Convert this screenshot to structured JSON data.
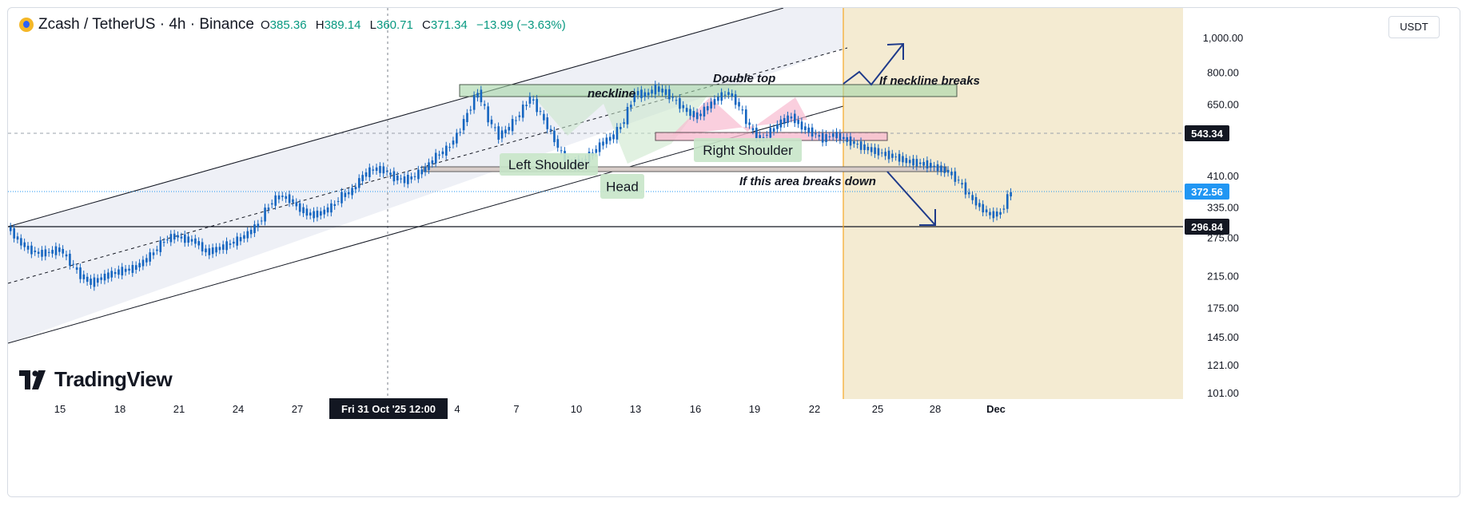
{
  "header": {
    "symbol": "Zcash / TetherUS · 4h · Binance",
    "open_label": "O",
    "open": "385.36",
    "high_label": "H",
    "high": "389.14",
    "low_label": "L",
    "low": "360.71",
    "close_label": "C",
    "close": "371.34",
    "change": "−13.99 (−3.63%)"
  },
  "currency_button": "USDT",
  "logo_text": "TradingView",
  "colors": {
    "up": "#089981",
    "candle": "#1565c0",
    "channel_fill": "#eef0f6",
    "projection_fill": "#f4ebd2",
    "projection_line": "#f5a623",
    "green_zone": "#c8e6c9",
    "pink_zone": "#f8bbd0",
    "arrow": "#1e3a8a",
    "current_price": "#2196f3",
    "level_dark": "#131722"
  },
  "chart_data": {
    "type": "candlestick",
    "symbol": "ZECUSDT",
    "interval": "4h",
    "y_scale": "log",
    "y_ticks": [
      "1,000.00",
      "800.00",
      "650.00",
      "410.00",
      "335.00",
      "275.00",
      "215.00",
      "175.00",
      "145.00",
      "121.00",
      "101.00"
    ],
    "y_tick_values": [
      1000,
      800,
      650,
      410,
      335,
      275,
      215,
      175,
      145,
      121,
      101
    ],
    "x_ticks": [
      "15",
      "18",
      "21",
      "24",
      "27",
      "Fri 31 Oct '25   12:00",
      "4",
      "7",
      "10",
      "13",
      "16",
      "19",
      "22",
      "25",
      "28",
      "Dec"
    ],
    "price_labels": [
      {
        "value": "543.34",
        "style": "dark"
      },
      {
        "value": "372.56",
        "style": "current"
      },
      {
        "value": "296.84",
        "style": "dark"
      }
    ],
    "annotations": [
      {
        "text": "neckline",
        "type": "italic"
      },
      {
        "text": "Double top",
        "type": "italic"
      },
      {
        "text": "If neckline breaks",
        "type": "italic"
      },
      {
        "text": "Left Shoulder",
        "type": "box"
      },
      {
        "text": "Head",
        "type": "box"
      },
      {
        "text": "Right Shoulder",
        "type": "box"
      },
      {
        "text": "If this area breaks down",
        "type": "italic"
      }
    ],
    "price_path": [
      [
        0,
        295
      ],
      [
        3,
        270
      ],
      [
        6,
        255
      ],
      [
        9,
        248
      ],
      [
        12,
        250
      ],
      [
        15,
        255
      ],
      [
        18,
        235
      ],
      [
        21,
        215
      ],
      [
        24,
        205
      ],
      [
        27,
        212
      ],
      [
        30,
        218
      ],
      [
        33,
        222
      ],
      [
        36,
        225
      ],
      [
        39,
        235
      ],
      [
        42,
        250
      ],
      [
        45,
        270
      ],
      [
        48,
        278
      ],
      [
        51,
        272
      ],
      [
        54,
        268
      ],
      [
        57,
        250
      ],
      [
        60,
        255
      ],
      [
        63,
        262
      ],
      [
        66,
        270
      ],
      [
        69,
        282
      ],
      [
        72,
        300
      ],
      [
        75,
        338
      ],
      [
        78,
        360
      ],
      [
        81,
        352
      ],
      [
        84,
        330
      ],
      [
        87,
        318
      ],
      [
        90,
        322
      ],
      [
        93,
        335
      ],
      [
        96,
        360
      ],
      [
        99,
        372
      ],
      [
        102,
        410
      ],
      [
        105,
        428
      ],
      [
        108,
        425
      ],
      [
        111,
        405
      ],
      [
        114,
        398
      ],
      [
        117,
        410
      ],
      [
        120,
        430
      ],
      [
        123,
        465
      ],
      [
        126,
        485
      ],
      [
        129,
        530
      ],
      [
        132,
        610
      ],
      [
        135,
        705
      ],
      [
        138,
        590
      ],
      [
        141,
        530
      ],
      [
        144,
        560
      ],
      [
        147,
        610
      ],
      [
        150,
        680
      ],
      [
        153,
        610
      ],
      [
        156,
        540
      ],
      [
        159,
        470
      ],
      [
        162,
        440
      ],
      [
        165,
        450
      ],
      [
        168,
        475
      ],
      [
        171,
        510
      ],
      [
        174,
        530
      ],
      [
        177,
        585
      ],
      [
        180,
        700
      ],
      [
        183,
        690
      ],
      [
        186,
        720
      ],
      [
        189,
        700
      ],
      [
        192,
        660
      ],
      [
        195,
        620
      ],
      [
        198,
        600
      ],
      [
        201,
        640
      ],
      [
        204,
        680
      ],
      [
        207,
        700
      ],
      [
        210,
        640
      ],
      [
        213,
        560
      ],
      [
        216,
        520
      ],
      [
        219,
        545
      ],
      [
        222,
        580
      ],
      [
        225,
        600
      ],
      [
        228,
        560
      ],
      [
        231,
        540
      ],
      [
        234,
        520
      ],
      [
        237,
        535
      ],
      [
        240,
        520
      ],
      [
        243,
        505
      ],
      [
        246,
        490
      ],
      [
        249,
        480
      ],
      [
        252,
        470
      ],
      [
        255,
        462
      ],
      [
        258,
        450
      ],
      [
        261,
        445
      ],
      [
        264,
        440
      ],
      [
        267,
        430
      ],
      [
        270,
        420
      ],
      [
        273,
        395
      ],
      [
        276,
        360
      ],
      [
        279,
        335
      ],
      [
        282,
        318
      ],
      [
        285,
        322
      ],
      [
        288,
        372
      ]
    ]
  }
}
